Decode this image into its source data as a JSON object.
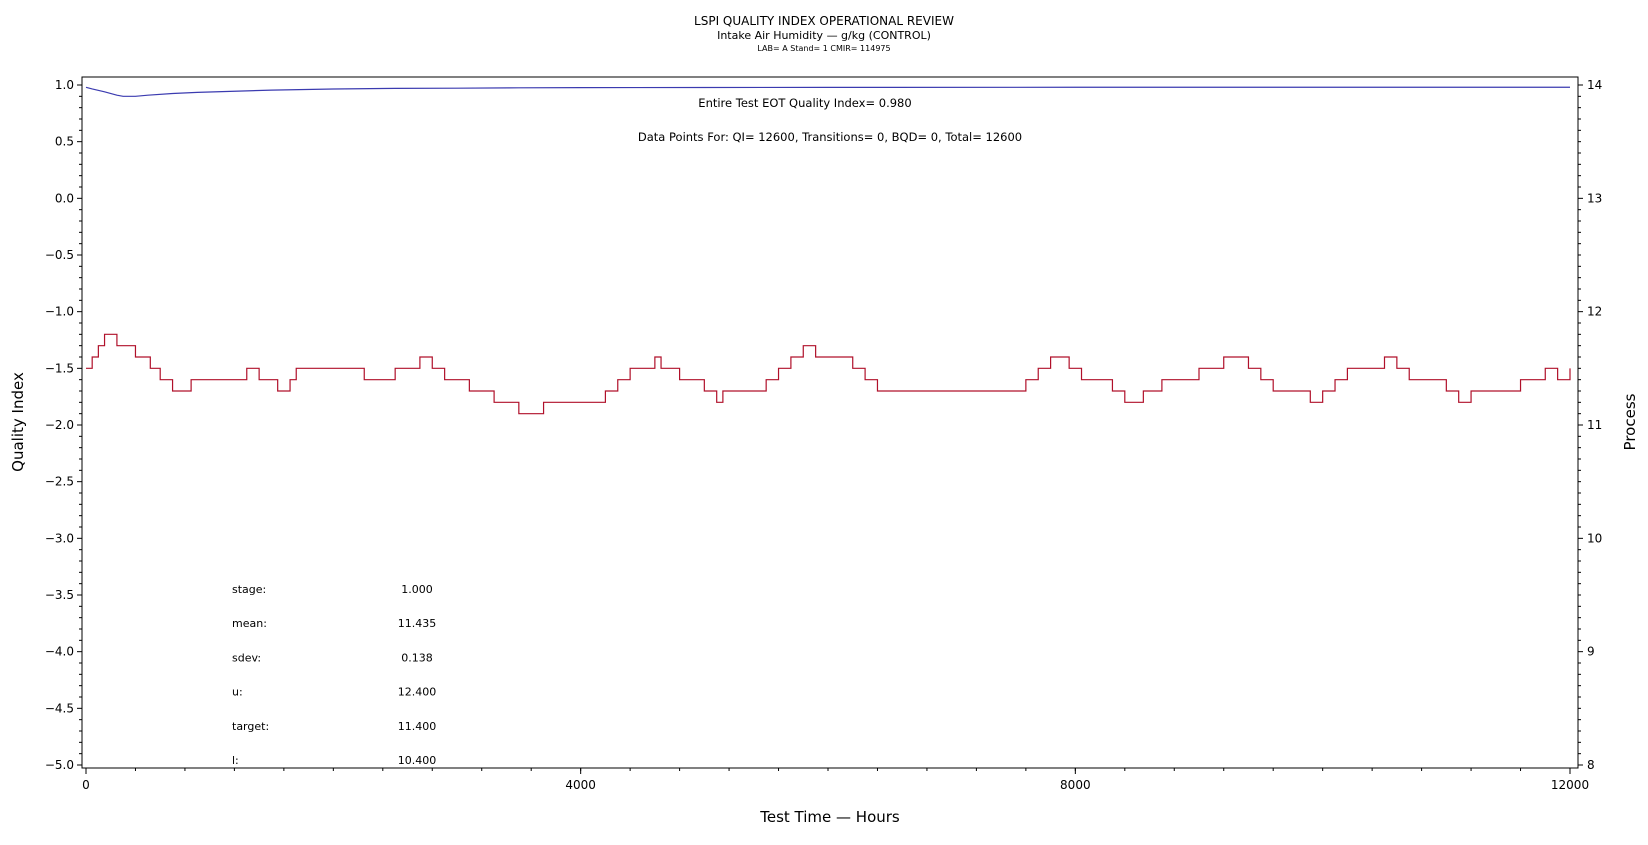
{
  "chart_data": {
    "type": "line",
    "title": "LSPI QUALITY INDEX OPERATIONAL REVIEW",
    "subtitle": "Intake Air Humidity — g/kg (CONTROL)",
    "subtitle2": "LAB= A Stand= 1 CMIR= 114975",
    "xlabel": "Test Time — Hours",
    "ylabel": "Quality Index",
    "y2label": "Process",
    "xlim": [
      0,
      12000
    ],
    "ylim": [
      -5.0,
      1.0
    ],
    "y2lim": [
      8,
      14
    ],
    "xticks": [
      "0",
      "4000",
      "8000",
      "12000"
    ],
    "yticks": [
      "1.0",
      "0.5",
      "0.0",
      "−0.5",
      "−1.0",
      "−1.5",
      "−2.0",
      "−2.5",
      "−3.0",
      "−3.5",
      "−4.0",
      "−4.5",
      "−5.0"
    ],
    "y2ticks": [
      "14",
      "13",
      "12",
      "11",
      "10",
      "9",
      "8"
    ],
    "annotations": {
      "eot": "Entire Test EOT Quality Index=   0.980",
      "points": "Data Points For: QI= 12600, Transitions=     0, BQD=     0, Total= 12600"
    },
    "stats": [
      {
        "label": "stage:",
        "value": "1.000"
      },
      {
        "label": "mean:",
        "value": "11.435"
      },
      {
        "label": "sdev:",
        "value": "0.138"
      },
      {
        "label": "u:",
        "value": "12.400"
      },
      {
        "label": "target:",
        "value": "11.400"
      },
      {
        "label": "l:",
        "value": "10.400"
      }
    ],
    "series": [
      {
        "axis": "left",
        "color": "#3b3bb0",
        "x": [
          0,
          50,
          150,
          250,
          300,
          400,
          500,
          700,
          900,
          1200,
          1500,
          2000,
          2500,
          3000,
          3500,
          4000,
          5000,
          6000,
          8000,
          10000,
          12000
        ],
        "y": [
          0.98,
          0.965,
          0.94,
          0.91,
          0.9,
          0.9,
          0.91,
          0.925,
          0.935,
          0.945,
          0.955,
          0.965,
          0.97,
          0.972,
          0.975,
          0.977,
          0.978,
          0.979,
          0.98,
          0.98,
          0.98
        ]
      },
      {
        "axis": "right",
        "color": "#b0102a",
        "x": [
          0,
          50,
          100,
          150,
          250,
          400,
          520,
          600,
          700,
          850,
          1300,
          1400,
          1550,
          1650,
          1700,
          2000,
          2250,
          2500,
          2700,
          2800,
          2900,
          3100,
          3300,
          3500,
          3600,
          3700,
          4200,
          4300,
          4400,
          4500,
          4600,
          4650,
          4800,
          5000,
          5100,
          5150,
          5200,
          5400,
          5500,
          5600,
          5700,
          5800,
          5900,
          6100,
          6200,
          6300,
          6400,
          6600,
          7000,
          7600,
          7700,
          7800,
          7850,
          7950,
          8050,
          8300,
          8400,
          8500,
          8550,
          8700,
          9000,
          9100,
          9200,
          9300,
          9400,
          9500,
          9600,
          9900,
          10000,
          10100,
          10200,
          10400,
          10500,
          10600,
          10700,
          11000,
          11100,
          11200,
          11500,
          11600,
          11800,
          11900,
          12000
        ],
        "y": [
          11.5,
          11.6,
          11.7,
          11.8,
          11.7,
          11.6,
          11.5,
          11.4,
          11.3,
          11.4,
          11.5,
          11.4,
          11.3,
          11.4,
          11.5,
          11.5,
          11.4,
          11.5,
          11.6,
          11.5,
          11.4,
          11.3,
          11.2,
          11.1,
          11.1,
          11.2,
          11.3,
          11.4,
          11.5,
          11.5,
          11.6,
          11.5,
          11.4,
          11.3,
          11.2,
          11.3,
          11.3,
          11.3,
          11.4,
          11.5,
          11.6,
          11.7,
          11.6,
          11.6,
          11.5,
          11.4,
          11.3,
          11.3,
          11.3,
          11.4,
          11.5,
          11.6,
          11.6,
          11.5,
          11.4,
          11.3,
          11.2,
          11.2,
          11.3,
          11.4,
          11.5,
          11.5,
          11.6,
          11.6,
          11.5,
          11.4,
          11.3,
          11.2,
          11.3,
          11.4,
          11.5,
          11.5,
          11.6,
          11.5,
          11.4,
          11.3,
          11.2,
          11.3,
          11.3,
          11.4,
          11.5,
          11.4,
          11.5
        ]
      }
    ]
  }
}
